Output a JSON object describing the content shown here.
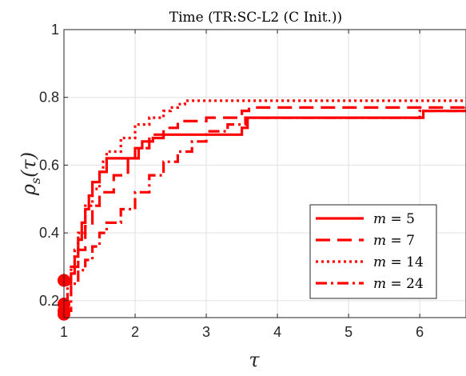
{
  "chart_data": {
    "type": "line",
    "title": "Time (TR:SC-L2 (C Init.))",
    "xlabel": "τ",
    "ylabel": "ρs(τ)",
    "ylabel_main": "ρ",
    "ylabel_sub": "s",
    "ylabel_arg": "(τ)",
    "xlim": [
      1,
      6.65
    ],
    "ylim": [
      0.15,
      1.0
    ],
    "xticks": [
      1,
      2,
      3,
      4,
      5,
      6
    ],
    "yticks": [
      0.2,
      0.4,
      0.6,
      0.8,
      1
    ],
    "xtick_labels": [
      "1",
      "2",
      "3",
      "4",
      "5",
      "6"
    ],
    "ytick_labels": [
      "0.2",
      "0.4",
      "0.6",
      "0.8",
      "1"
    ],
    "grid": true,
    "legend_position": "bottom-right",
    "color": "#ff0000",
    "series": [
      {
        "name": "m = 5",
        "label_var": "m",
        "label_val": "5",
        "style": "solid",
        "x": [
          1,
          1.05,
          1.1,
          1.15,
          1.2,
          1.25,
          1.3,
          1.35,
          1.4,
          1.5,
          1.6,
          1.75,
          2.0,
          2.1,
          2.25,
          2.4,
          3.0,
          3.5,
          3.58,
          6.0,
          6.05,
          6.65
        ],
        "y": [
          0.26,
          0.26,
          0.28,
          0.33,
          0.38,
          0.43,
          0.47,
          0.51,
          0.55,
          0.58,
          0.62,
          0.62,
          0.65,
          0.67,
          0.68,
          0.69,
          0.69,
          0.71,
          0.74,
          0.74,
          0.76,
          0.76
        ]
      },
      {
        "name": "m = 7",
        "label_var": "m",
        "label_val": "7",
        "style": "dashed",
        "x": [
          1,
          1.05,
          1.1,
          1.2,
          1.3,
          1.4,
          1.5,
          1.7,
          1.9,
          2.05,
          2.2,
          2.4,
          2.6,
          3.0,
          3.5,
          3.6,
          6.65
        ],
        "y": [
          0.19,
          0.25,
          0.3,
          0.35,
          0.42,
          0.48,
          0.52,
          0.57,
          0.62,
          0.65,
          0.69,
          0.71,
          0.73,
          0.74,
          0.76,
          0.77,
          0.77
        ]
      },
      {
        "name": "m = 14",
        "label_var": "m",
        "label_val": "14",
        "style": "dotted",
        "x": [
          1,
          1.05,
          1.1,
          1.15,
          1.2,
          1.3,
          1.4,
          1.5,
          1.55,
          1.6,
          1.8,
          2.0,
          2.2,
          2.4,
          2.5,
          2.6,
          2.7,
          6.65
        ],
        "y": [
          0.16,
          0.26,
          0.3,
          0.35,
          0.4,
          0.48,
          0.53,
          0.58,
          0.61,
          0.64,
          0.68,
          0.72,
          0.74,
          0.76,
          0.77,
          0.78,
          0.79,
          0.79
        ]
      },
      {
        "name": "m = 24",
        "label_var": "m",
        "label_val": "24",
        "style": "dashdot",
        "x": [
          1,
          1.1,
          1.2,
          1.3,
          1.4,
          1.5,
          1.6,
          1.8,
          2.0,
          2.2,
          2.4,
          2.6,
          2.8,
          3.0,
          3.3,
          3.55,
          6.0,
          6.65
        ],
        "y": [
          0.17,
          0.25,
          0.29,
          0.32,
          0.36,
          0.4,
          0.43,
          0.47,
          0.52,
          0.57,
          0.61,
          0.64,
          0.67,
          0.7,
          0.72,
          0.74,
          0.76,
          0.77
        ]
      }
    ],
    "start_markers": [
      0.26,
      0.19,
      0.17,
      0.16
    ]
  }
}
